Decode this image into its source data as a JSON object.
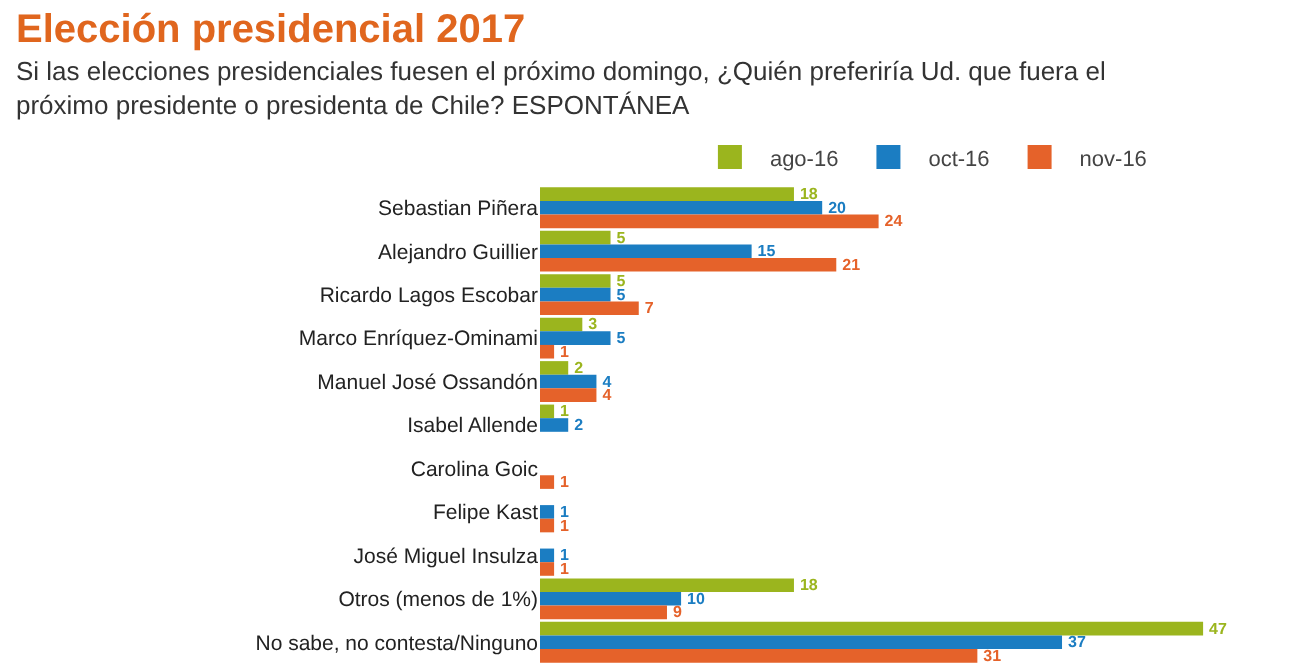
{
  "chart_data": {
    "type": "bar",
    "orientation": "horizontal",
    "title": "Elección presidencial 2017",
    "subtitle": "Si las elecciones presidenciales fuesen el próximo domingo, ¿Quién preferiría Ud. que fuera el próximo presidente o presidenta de Chile? ESPONTÁNEA",
    "categories": [
      "Sebastian Piñera",
      "Alejandro Guillier",
      "Ricardo Lagos Escobar",
      "Marco Enríquez-Ominami",
      "Manuel José Ossandón",
      "Isabel Allende",
      "Carolina Goic",
      "Felipe Kast",
      "José Miguel Insulza",
      "Otros (menos de 1%)",
      "No sabe, no contesta/Ninguno"
    ],
    "series": [
      {
        "name": "ago-16",
        "color": "#9bb51e",
        "values": [
          18,
          5,
          5,
          3,
          2,
          1,
          null,
          null,
          null,
          18,
          47
        ]
      },
      {
        "name": "oct-16",
        "color": "#1b7dc2",
        "values": [
          20,
          15,
          5,
          5,
          4,
          2,
          null,
          1,
          1,
          10,
          37
        ]
      },
      {
        "name": "nov-16",
        "color": "#e5622a",
        "values": [
          24,
          21,
          7,
          1,
          4,
          null,
          1,
          1,
          1,
          9,
          31
        ]
      }
    ],
    "data_labels": true,
    "legend": "top",
    "grid": false,
    "tick_labels": "y"
  }
}
